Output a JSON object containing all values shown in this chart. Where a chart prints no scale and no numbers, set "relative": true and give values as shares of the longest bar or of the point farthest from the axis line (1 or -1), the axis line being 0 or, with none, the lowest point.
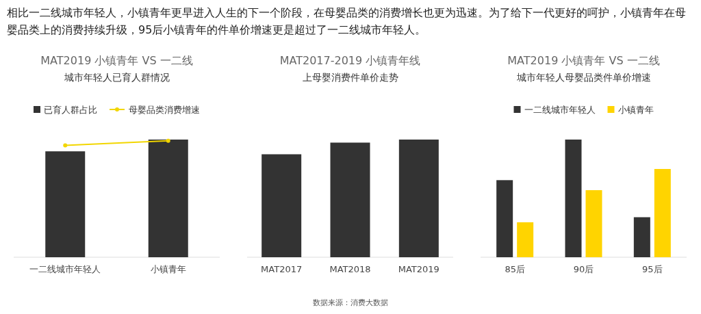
{
  "chart_data": [
    {
      "type": "bar",
      "title": "MAT2019 小镇青年 VS 一二线",
      "subtitle": "城市年轻人已育人群情况",
      "annotations": [
        "相比一二线城市年轻人，小镇青年更早进入人生的下一个阶段，在母婴品类的消费增长也更为迅速。为了给下一代更好的呵护，小镇青年在母婴品类上的消费持续升级，95后小镇青年的件单价增速更是超过了一二线城市年轻人。"
      ],
      "categories": [
        "一二线城市年轻人",
        "小镇青年"
      ],
      "relative": true,
      "legend": "top",
      "series": [
        {
          "name": "已育人群占比",
          "color": "#333333",
          "values": [
            0.9,
            1.0
          ]
        },
        {
          "name": "母婴品类消费增速",
          "type": "line",
          "marker": "circle",
          "color": "#f2d600",
          "values": [
            0.95,
            0.99
          ]
        }
      ]
    },
    {
      "type": "bar",
      "title": "MAT2017-2019 小镇青年线",
      "subtitle": "上母婴消费件单价走势",
      "annotations": [
        "数据来源：消费大数据"
      ],
      "categories": [
        "MAT2017",
        "MAT2018",
        "MAT2019"
      ],
      "relative": true,
      "series": [
        {
          "color": "#333333",
          "values": [
            0.875,
            0.974,
            1.0
          ]
        }
      ]
    },
    {
      "type": "bar",
      "title": "MAT2019 小镇青年 VS 一二线",
      "subtitle": "城市年轻人母婴品类件单价增速",
      "categories": [
        "85后",
        "90后",
        "95后"
      ],
      "relative": true,
      "legend": "top",
      "series": [
        {
          "name": "一二线城市年轻人",
          "color": "#333333",
          "values": [
            0.655,
            1.0,
            0.34
          ]
        },
        {
          "name": "小镇青年",
          "color": "#ffd400",
          "values": [
            0.297,
            0.57,
            0.75
          ]
        }
      ]
    }
  ]
}
